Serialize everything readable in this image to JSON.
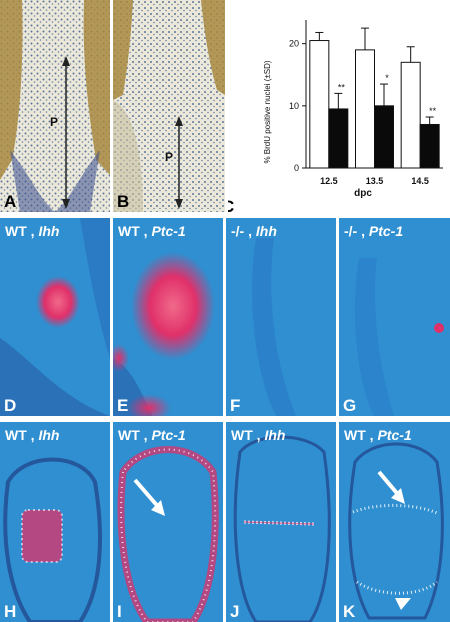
{
  "panels_top": [
    {
      "label": "A",
      "region_marker": "P"
    },
    {
      "label": "B",
      "region_marker": "P"
    }
  ],
  "chart_data": {
    "type": "bar",
    "categories": [
      "12.5",
      "13.5",
      "14.5"
    ],
    "series": [
      {
        "values": [
          20.5,
          19,
          17
        ],
        "errors": [
          1.3,
          3.5,
          2.5
        ],
        "color": "#ffffff"
      },
      {
        "values": [
          9.5,
          10,
          7
        ],
        "errors": [
          2.5,
          3.5,
          1.2
        ],
        "color": "#0a0a0a"
      }
    ],
    "significance": [
      "**",
      "*",
      "**"
    ],
    "xlabel": "dpc",
    "ylabel": "% BrdU positive nuclei (±SD)",
    "yticks": [
      0,
      10,
      20
    ],
    "ylim": [
      0,
      23
    ],
    "panel_label": "C"
  },
  "panels_middle": [
    {
      "label": "D",
      "genotype": "WT ,",
      "gene": "Ihh"
    },
    {
      "label": "E",
      "genotype": "WT ,",
      "gene": "Ptc-1"
    },
    {
      "label": "F",
      "genotype": "-/- ,",
      "gene": "Ihh"
    },
    {
      "label": "G",
      "genotype": "-/- ,",
      "gene": "Ptc-1"
    }
  ],
  "panels_bottom": [
    {
      "label": "H",
      "genotype": "WT ,",
      "gene": "Ihh"
    },
    {
      "label": "I",
      "genotype": "WT ,",
      "gene": "Ptc-1"
    },
    {
      "label": "J",
      "genotype": "WT ,",
      "gene": "Ihh"
    },
    {
      "label": "K",
      "genotype": "WT ,",
      "gene": "Ptc-1"
    }
  ],
  "colors": {
    "background_blue": "#2f8fd0",
    "signal_red": "#e0306a",
    "histology_bg": "#e6e4d6",
    "stain_brown": "#b08a3c"
  }
}
